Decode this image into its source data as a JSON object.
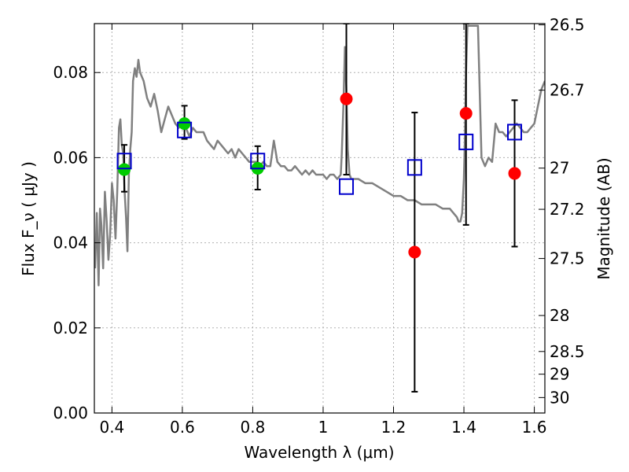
{
  "chart_data": {
    "type": "scatter",
    "title": "",
    "xlabel": "Wavelength  λ (μm)",
    "ylabel": "Flux  F_ν  ( μJy )",
    "ylabel_right": "Magnitude (AB)",
    "xlim": [
      0.35,
      1.63
    ],
    "ylim": [
      0.0,
      0.0915
    ],
    "grid": true,
    "xticks": [
      0.4,
      0.6,
      0.8,
      1.0,
      1.2,
      1.4,
      1.6
    ],
    "xtick_labels": [
      "0.4",
      "0.6",
      "0.8",
      "1",
      "1.2",
      "1.4",
      "1.6"
    ],
    "yticks": [
      0.0,
      0.02,
      0.04,
      0.06,
      0.08
    ],
    "ytick_labels": [
      "0.00",
      "0.02",
      "0.04",
      "0.06",
      "0.08"
    ],
    "right_ticks": [
      {
        "label": "26.5",
        "mag": 26.5
      },
      {
        "label": "26.7",
        "mag": 26.7
      },
      {
        "label": "27",
        "mag": 27.0
      },
      {
        "label": "27.2",
        "mag": 27.2
      },
      {
        "label": "27.5",
        "mag": 27.5
      },
      {
        "label": "28",
        "mag": 28.0
      },
      {
        "label": "28.5",
        "mag": 28.5
      },
      {
        "label": "29",
        "mag": 29.0
      },
      {
        "label": "30",
        "mag": 30.0
      }
    ],
    "colors": {
      "model": "#808080",
      "observed_optical": "#00cc00",
      "observed_nir": "#ff0000",
      "model_photometry": "#0000cc",
      "errorbar": "#000000",
      "grid": "#b0b0b0"
    },
    "series": [
      {
        "style": "line",
        "color_key": "model",
        "x": [
          0.352,
          0.357,
          0.362,
          0.366,
          0.37,
          0.375,
          0.38,
          0.385,
          0.39,
          0.395,
          0.4,
          0.405,
          0.41,
          0.415,
          0.42,
          0.424,
          0.428,
          0.432,
          0.436,
          0.44,
          0.444,
          0.448,
          0.452,
          0.456,
          0.46,
          0.465,
          0.47,
          0.475,
          0.48,
          0.49,
          0.5,
          0.51,
          0.52,
          0.53,
          0.54,
          0.55,
          0.56,
          0.57,
          0.58,
          0.59,
          0.6,
          0.61,
          0.62,
          0.63,
          0.64,
          0.65,
          0.66,
          0.67,
          0.68,
          0.69,
          0.7,
          0.71,
          0.72,
          0.73,
          0.74,
          0.75,
          0.76,
          0.77,
          0.78,
          0.79,
          0.8,
          0.81,
          0.82,
          0.83,
          0.84,
          0.85,
          0.86,
          0.87,
          0.88,
          0.89,
          0.9,
          0.91,
          0.92,
          0.93,
          0.94,
          0.95,
          0.96,
          0.97,
          0.98,
          0.99,
          1.0,
          1.01,
          1.02,
          1.03,
          1.04,
          1.05,
          1.053,
          1.058,
          1.062,
          1.066,
          1.07,
          1.075,
          1.08,
          1.09,
          1.1,
          1.12,
          1.14,
          1.16,
          1.18,
          1.2,
          1.22,
          1.24,
          1.26,
          1.28,
          1.3,
          1.32,
          1.34,
          1.36,
          1.37,
          1.38,
          1.385,
          1.39,
          1.395,
          1.4,
          1.403,
          1.406,
          1.41,
          1.415,
          1.42,
          1.425,
          1.43,
          1.44,
          1.45,
          1.46,
          1.47,
          1.48,
          1.49,
          1.5,
          1.51,
          1.52,
          1.53,
          1.54,
          1.55,
          1.56,
          1.57,
          1.58,
          1.59,
          1.6,
          1.61,
          1.62,
          1.63
        ],
        "y": [
          0.034,
          0.047,
          0.03,
          0.048,
          0.044,
          0.034,
          0.052,
          0.045,
          0.036,
          0.042,
          0.054,
          0.05,
          0.041,
          0.052,
          0.067,
          0.069,
          0.063,
          0.061,
          0.052,
          0.046,
          0.038,
          0.056,
          0.062,
          0.066,
          0.078,
          0.081,
          0.079,
          0.083,
          0.08,
          0.078,
          0.074,
          0.072,
          0.075,
          0.071,
          0.066,
          0.069,
          0.072,
          0.07,
          0.068,
          0.067,
          0.068,
          0.067,
          0.065,
          0.067,
          0.066,
          0.066,
          0.066,
          0.064,
          0.063,
          0.062,
          0.064,
          0.063,
          0.062,
          0.061,
          0.062,
          0.06,
          0.062,
          0.061,
          0.06,
          0.059,
          0.059,
          0.059,
          0.058,
          0.059,
          0.058,
          0.058,
          0.064,
          0.059,
          0.058,
          0.058,
          0.057,
          0.057,
          0.058,
          0.057,
          0.056,
          0.057,
          0.056,
          0.057,
          0.056,
          0.056,
          0.056,
          0.055,
          0.056,
          0.056,
          0.055,
          0.056,
          0.061,
          0.073,
          0.086,
          0.076,
          0.062,
          0.056,
          0.055,
          0.055,
          0.055,
          0.054,
          0.054,
          0.053,
          0.052,
          0.051,
          0.051,
          0.05,
          0.05,
          0.049,
          0.049,
          0.049,
          0.048,
          0.048,
          0.047,
          0.046,
          0.045,
          0.045,
          0.047,
          0.055,
          0.065,
          0.08,
          0.091,
          0.091,
          0.091,
          0.091,
          0.091,
          0.091,
          0.06,
          0.058,
          0.06,
          0.059,
          0.068,
          0.066,
          0.066,
          0.065,
          0.066,
          0.067,
          0.068,
          0.067,
          0.066,
          0.066,
          0.067,
          0.068,
          0.072,
          0.076,
          0.078
        ]
      },
      {
        "style": "points",
        "marker": "circle",
        "color_key": "observed_optical",
        "x": [
          0.435,
          0.606,
          0.814
        ],
        "y": [
          0.0572,
          0.068,
          0.0575
        ],
        "yerr_low": [
          0.0052,
          0.0036,
          0.005
        ],
        "yerr_high": [
          0.0058,
          0.0042,
          0.0052
        ]
      },
      {
        "style": "points",
        "marker": "circle",
        "color_key": "observed_nir",
        "x": [
          1.066,
          1.26,
          1.406,
          1.544
        ],
        "y": [
          0.0738,
          0.0378,
          0.0704,
          0.0563
        ],
        "yerr_low": [
          0.0178,
          0.0328,
          0.0262,
          0.0172
        ],
        "yerr_high": [
          0.0177,
          0.0328,
          0.0211,
          0.0172
        ]
      },
      {
        "style": "points",
        "marker": "square",
        "color_key": "model_photometry",
        "x": [
          0.435,
          0.606,
          0.814,
          1.066,
          1.26,
          1.406,
          1.544
        ],
        "y": [
          0.0592,
          0.0665,
          0.0592,
          0.0532,
          0.0577,
          0.0637,
          0.066
        ]
      }
    ]
  }
}
